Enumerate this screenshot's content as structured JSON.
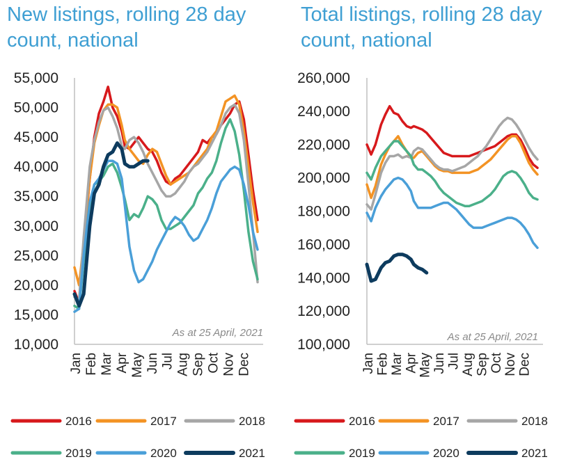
{
  "chart_data": [
    {
      "type": "line",
      "title": "New listings, rolling 28 day count, national",
      "annotation": "As at 25 April, 2021",
      "ylim": [
        10000,
        55000
      ],
      "yticks": [
        "55,000",
        "50,000",
        "45,000",
        "40,000",
        "35,000",
        "30,000",
        "25,000",
        "20,000",
        "15,000",
        "10,000"
      ],
      "months": [
        "Jan",
        "Feb",
        "Mar",
        "Apr",
        "May",
        "Jun",
        "Jul",
        "Aug",
        "Sep",
        "Oct",
        "Nov",
        "Dec"
      ],
      "xlim": [
        0,
        12
      ],
      "grid": false,
      "legend_position": "bottom",
      "series": [
        {
          "name": "2016",
          "color": "#d7191c",
          "x": [
            0,
            0.3,
            0.6,
            1,
            1.3,
            1.6,
            1.9,
            2.2,
            2.5,
            2.8,
            3.1,
            3.3,
            3.6,
            3.9,
            4.2,
            4.5,
            4.8,
            5.1,
            5.4,
            5.7,
            6,
            6.3,
            6.6,
            6.9,
            7.2,
            7.5,
            7.8,
            8.1,
            8.4,
            8.7,
            9,
            9.3,
            9.6,
            9.9,
            10.2,
            10.5,
            10.8,
            11.1,
            11.4,
            11.7,
            12
          ],
          "y": [
            19000,
            17000,
            26000,
            38000,
            45000,
            49000,
            51000,
            53500,
            50000,
            48500,
            46000,
            43500,
            43000,
            44000,
            45000,
            44000,
            43000,
            42500,
            41000,
            39000,
            37500,
            37000,
            38000,
            38500,
            39500,
            40500,
            41500,
            42500,
            44500,
            44000,
            45000,
            45500,
            47000,
            48000,
            49000,
            50500,
            51000,
            48000,
            42000,
            36000,
            31000
          ]
        },
        {
          "name": "2017",
          "color": "#f39324",
          "x": [
            0,
            0.3,
            0.6,
            1,
            1.3,
            1.6,
            1.9,
            2.2,
            2.5,
            2.8,
            3.1,
            3.3,
            3.6,
            3.9,
            4.2,
            4.5,
            4.8,
            5.1,
            5.4,
            5.7,
            6,
            6.3,
            6.6,
            6.9,
            7.2,
            7.5,
            7.8,
            8.1,
            8.4,
            8.7,
            9,
            9.3,
            9.6,
            9.9,
            10.2,
            10.5,
            10.8,
            11.1,
            11.4,
            11.7,
            12
          ],
          "y": [
            23000,
            20000,
            27000,
            38000,
            44000,
            47000,
            49500,
            50500,
            50500,
            50000,
            47000,
            44500,
            43000,
            42000,
            41000,
            40500,
            42000,
            43000,
            42500,
            40500,
            38500,
            37000,
            37500,
            38000,
            38500,
            39000,
            40000,
            41000,
            42000,
            43000,
            45000,
            46000,
            48500,
            51000,
            51500,
            52000,
            50500,
            46000,
            40000,
            34000,
            29000
          ]
        },
        {
          "name": "2018",
          "color": "#a6a6a6",
          "x": [
            0,
            0.3,
            0.6,
            1,
            1.3,
            1.6,
            1.9,
            2.2,
            2.5,
            2.8,
            3.1,
            3.3,
            3.6,
            3.9,
            4.2,
            4.5,
            4.8,
            5.1,
            5.4,
            5.7,
            6,
            6.3,
            6.6,
            6.9,
            7.2,
            7.5,
            7.8,
            8.1,
            8.4,
            8.7,
            9,
            9.3,
            9.6,
            9.9,
            10.2,
            10.5,
            10.8,
            11.1,
            11.4,
            11.7,
            12
          ],
          "y": [
            18000,
            17500,
            28000,
            40000,
            44500,
            47500,
            49500,
            50000,
            48500,
            46500,
            43500,
            43000,
            44500,
            45000,
            44000,
            42500,
            40500,
            39000,
            37500,
            36000,
            35000,
            35000,
            35500,
            36500,
            37500,
            39000,
            40000,
            40500,
            41500,
            42500,
            44000,
            45500,
            47000,
            49000,
            50000,
            50500,
            49000,
            44500,
            37000,
            29000,
            20500
          ]
        },
        {
          "name": "2019",
          "color": "#4bb08a",
          "x": [
            0,
            0.3,
            0.6,
            1,
            1.3,
            1.6,
            1.9,
            2.2,
            2.5,
            2.8,
            3.1,
            3.3,
            3.6,
            3.9,
            4.2,
            4.5,
            4.8,
            5.1,
            5.4,
            5.7,
            6,
            6.3,
            6.6,
            6.9,
            7.2,
            7.5,
            7.8,
            8.1,
            8.4,
            8.7,
            9,
            9.3,
            9.6,
            9.9,
            10.2,
            10.5,
            10.8,
            11.1,
            11.4,
            11.7,
            12
          ],
          "y": [
            16500,
            16000,
            24000,
            33000,
            37000,
            37500,
            38500,
            40000,
            40500,
            39000,
            36500,
            34500,
            31000,
            32000,
            31500,
            33000,
            35000,
            34500,
            33500,
            31000,
            29500,
            29500,
            30000,
            30500,
            31500,
            32500,
            33500,
            35500,
            36500,
            38000,
            39000,
            41000,
            44000,
            46500,
            48000,
            46000,
            42000,
            36000,
            29000,
            24000,
            21000
          ]
        },
        {
          "name": "2020",
          "color": "#4a9fd8",
          "x": [
            0,
            0.3,
            0.6,
            1,
            1.3,
            1.6,
            1.9,
            2.2,
            2.5,
            2.8,
            3.1,
            3.3,
            3.6,
            3.9,
            4.2,
            4.5,
            4.8,
            5.1,
            5.4,
            5.7,
            6,
            6.3,
            6.6,
            6.9,
            7.2,
            7.5,
            7.8,
            8.1,
            8.4,
            8.7,
            9,
            9.3,
            9.6,
            9.9,
            10.2,
            10.5,
            10.8,
            11.1,
            11.4,
            11.7,
            12
          ],
          "y": [
            15500,
            16000,
            25000,
            34000,
            37000,
            38000,
            39500,
            41000,
            41000,
            40500,
            38000,
            33500,
            26500,
            22500,
            20500,
            21000,
            22500,
            24000,
            26000,
            27500,
            29000,
            30500,
            31500,
            31000,
            30000,
            28500,
            27500,
            28000,
            29500,
            31000,
            33000,
            35500,
            37500,
            38500,
            39500,
            40000,
            39500,
            37000,
            33500,
            29000,
            26000
          ]
        },
        {
          "name": "2021",
          "color": "#0d3b5e",
          "x": [
            0,
            0.3,
            0.6,
            1,
            1.3,
            1.6,
            1.9,
            2.2,
            2.5,
            2.8,
            3.1,
            3.3,
            3.6,
            3.9,
            4.2,
            4.5,
            4.8
          ],
          "y": [
            18500,
            16500,
            18500,
            30000,
            35500,
            37000,
            40000,
            42000,
            42500,
            44000,
            43000,
            40500,
            40000,
            40000,
            40500,
            41000,
            41000
          ]
        }
      ]
    },
    {
      "type": "line",
      "title": "Total listings, rolling 28 day count, national",
      "annotation": "As at 25 April, 2021",
      "ylim": [
        100000,
        260000
      ],
      "yticks": [
        "260,000",
        "240,000",
        "220,000",
        "200,000",
        "180,000",
        "160,000",
        "140,000",
        "120,000",
        "100,000"
      ],
      "months": [
        "Jan",
        "Feb",
        "Mar",
        "Apr",
        "May",
        "Jun",
        "Jul",
        "Aug",
        "Sep",
        "Oct",
        "Nov",
        "Dec"
      ],
      "xlim": [
        0,
        12
      ],
      "grid": false,
      "legend_position": "bottom",
      "series": [
        {
          "name": "2016",
          "color": "#d7191c",
          "x": [
            0,
            0.3,
            0.6,
            1,
            1.3,
            1.6,
            1.9,
            2.2,
            2.5,
            2.8,
            3.1,
            3.3,
            3.6,
            3.9,
            4.2,
            4.5,
            4.8,
            5.1,
            5.4,
            5.7,
            6,
            6.3,
            6.6,
            6.9,
            7.2,
            7.5,
            7.8,
            8.1,
            8.4,
            8.7,
            9,
            9.3,
            9.6,
            9.9,
            10.2,
            10.5,
            10.8,
            11.1,
            11.4,
            11.7,
            12
          ],
          "y": [
            220000,
            214000,
            220000,
            232000,
            238000,
            243000,
            239000,
            238000,
            234000,
            231000,
            230000,
            231000,
            230000,
            229000,
            227000,
            224000,
            221000,
            218000,
            215000,
            214000,
            213000,
            213000,
            213000,
            213000,
            213000,
            214000,
            215000,
            216000,
            217000,
            218000,
            219000,
            221000,
            223000,
            225000,
            226000,
            226000,
            223000,
            218000,
            212000,
            208000,
            206000
          ]
        },
        {
          "name": "2017",
          "color": "#f39324",
          "x": [
            0,
            0.3,
            0.6,
            1,
            1.3,
            1.6,
            1.9,
            2.2,
            2.5,
            2.8,
            3.1,
            3.3,
            3.6,
            3.9,
            4.2,
            4.5,
            4.8,
            5.1,
            5.4,
            5.7,
            6,
            6.3,
            6.6,
            6.9,
            7.2,
            7.5,
            7.8,
            8.1,
            8.4,
            8.7,
            9,
            9.3,
            9.6,
            9.9,
            10.2,
            10.5,
            10.8,
            11.1,
            11.4,
            11.7,
            12
          ],
          "y": [
            196000,
            188000,
            195000,
            208000,
            214000,
            219000,
            222000,
            225000,
            220000,
            216000,
            212000,
            212000,
            215000,
            216000,
            213000,
            210000,
            207000,
            205000,
            204000,
            204000,
            203000,
            203000,
            203000,
            203000,
            203000,
            204000,
            205000,
            207000,
            209000,
            211000,
            214000,
            217000,
            220000,
            223000,
            225000,
            225000,
            221000,
            215000,
            209000,
            205000,
            202000
          ]
        },
        {
          "name": "2018",
          "color": "#a6a6a6",
          "x": [
            0,
            0.3,
            0.6,
            1,
            1.3,
            1.6,
            1.9,
            2.2,
            2.5,
            2.8,
            3.1,
            3.3,
            3.6,
            3.9,
            4.2,
            4.5,
            4.8,
            5.1,
            5.4,
            5.7,
            6,
            6.3,
            6.6,
            6.9,
            7.2,
            7.5,
            7.8,
            8.1,
            8.4,
            8.7,
            9,
            9.3,
            9.6,
            9.9,
            10.2,
            10.5,
            10.8,
            11.1,
            11.4,
            11.7,
            12
          ],
          "y": [
            184000,
            181000,
            190000,
            203000,
            209000,
            213000,
            213000,
            214000,
            212000,
            213000,
            212000,
            216000,
            218000,
            217000,
            214000,
            211000,
            208000,
            206000,
            205000,
            205000,
            204000,
            205000,
            206000,
            207000,
            209000,
            211000,
            213000,
            216000,
            219000,
            223000,
            227000,
            231000,
            234000,
            236000,
            235000,
            232000,
            228000,
            223000,
            218000,
            214000,
            211000
          ]
        },
        {
          "name": "2019",
          "color": "#4bb08a",
          "x": [
            0,
            0.3,
            0.6,
            1,
            1.3,
            1.6,
            1.9,
            2.2,
            2.5,
            2.8,
            3.1,
            3.3,
            3.6,
            3.9,
            4.2,
            4.5,
            4.8,
            5.1,
            5.4,
            5.7,
            6,
            6.3,
            6.6,
            6.9,
            7.2,
            7.5,
            7.8,
            8.1,
            8.4,
            8.7,
            9,
            9.3,
            9.6,
            9.9,
            10.2,
            10.5,
            10.8,
            11.1,
            11.4,
            11.7,
            12
          ],
          "y": [
            203000,
            199000,
            206000,
            213000,
            216000,
            219000,
            222000,
            222000,
            219000,
            216000,
            213000,
            208000,
            205000,
            205000,
            203000,
            201000,
            198000,
            194000,
            191000,
            189000,
            187000,
            185000,
            184000,
            183000,
            183000,
            184000,
            185000,
            186000,
            188000,
            190000,
            193000,
            197000,
            201000,
            203000,
            204000,
            203000,
            200000,
            196000,
            191000,
            188000,
            187000
          ]
        },
        {
          "name": "2020",
          "color": "#4a9fd8",
          "x": [
            0,
            0.3,
            0.6,
            1,
            1.3,
            1.6,
            1.9,
            2.2,
            2.5,
            2.8,
            3.1,
            3.3,
            3.6,
            3.9,
            4.2,
            4.5,
            4.8,
            5.1,
            5.4,
            5.7,
            6,
            6.3,
            6.6,
            6.9,
            7.2,
            7.5,
            7.8,
            8.1,
            8.4,
            8.7,
            9,
            9.3,
            9.6,
            9.9,
            10.2,
            10.5,
            10.8,
            11.1,
            11.4,
            11.7,
            12
          ],
          "y": [
            179000,
            174000,
            182000,
            189000,
            193000,
            196000,
            199000,
            200000,
            199000,
            196000,
            192000,
            186000,
            182000,
            182000,
            182000,
            182000,
            183000,
            184000,
            185000,
            185000,
            183000,
            181000,
            178000,
            175000,
            172000,
            170000,
            170000,
            170000,
            171000,
            172000,
            173000,
            174000,
            175000,
            176000,
            176000,
            175000,
            173000,
            170000,
            166000,
            161000,
            158000
          ]
        },
        {
          "name": "2021",
          "color": "#0d3b5e",
          "x": [
            0,
            0.3,
            0.6,
            1,
            1.3,
            1.6,
            1.9,
            2.2,
            2.5,
            2.8,
            3.1,
            3.3,
            3.6,
            3.9,
            4.2
          ],
          "y": [
            148000,
            138000,
            139000,
            146000,
            149000,
            150000,
            153000,
            154000,
            154000,
            153000,
            151000,
            148000,
            146000,
            145000,
            143000
          ]
        }
      ]
    }
  ]
}
